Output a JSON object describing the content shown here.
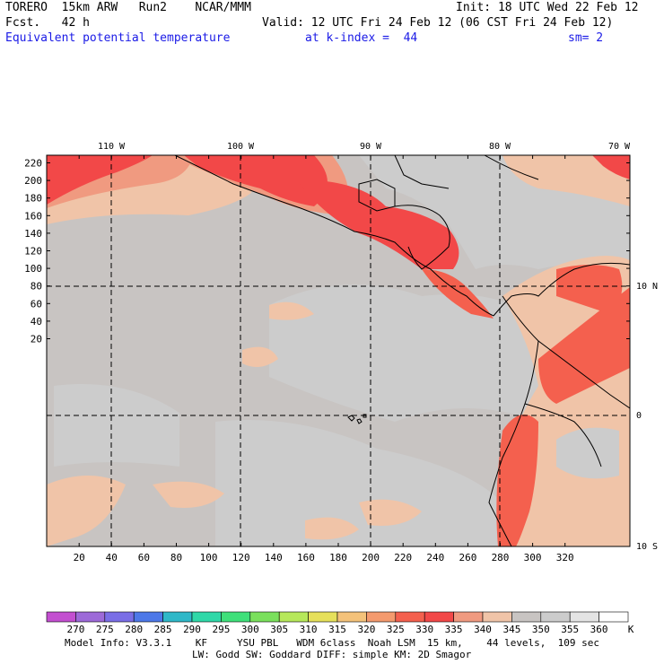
{
  "header": {
    "model": "TORERO  15km ARW   Run2    NCAR/MMM",
    "init": "Init: 18 UTC Wed 22 Feb 12",
    "fcst": "Fcst.   42 h",
    "valid": "Valid: 12 UTC Fri 24 Feb 12 (06 CST Fri 24 Feb 12)",
    "field": "Equivalent potential temperature",
    "level": "at k-index =  44",
    "smooth": "sm= 2"
  },
  "map": {
    "lon_labels": [
      "110 W",
      "100 W",
      "90 W",
      "80 W",
      "70 W"
    ],
    "lat_labels": [
      "10 N",
      "0",
      "10 S"
    ],
    "y_ticks": [
      "220",
      "200",
      "180",
      "160",
      "140",
      "120",
      "100",
      "80",
      "60",
      "40",
      "20"
    ],
    "x_ticks": [
      "20",
      "40",
      "60",
      "80",
      "100",
      "120",
      "140",
      "160",
      "180",
      "200",
      "220",
      "240",
      "260",
      "280",
      "300",
      "320"
    ]
  },
  "legend": {
    "unit": "K",
    "levels": [
      "270",
      "275",
      "280",
      "285",
      "290",
      "295",
      "300",
      "305",
      "310",
      "315",
      "320",
      "325",
      "330",
      "335",
      "340",
      "345",
      "350",
      "355",
      "360"
    ],
    "colors": [
      "#c34fd0",
      "#9d6ad8",
      "#7a6ee6",
      "#4d78e8",
      "#2fb8c8",
      "#2fd8a8",
      "#3fe07a",
      "#7ae05c",
      "#b6e85a",
      "#e6e05a",
      "#f4c27a",
      "#f49a6e",
      "#f4604e",
      "#f24848",
      "#f09a80",
      "#f0c4a8",
      "#c8c4c2",
      "#cccccc",
      "#e4e4e4",
      "#ffffff"
    ]
  },
  "footer": {
    "line1": "Model Info: V3.3.1    KF     YSU PBL   WDM 6class  Noah LSM  15 km,    44 levels,  109 sec",
    "line2": "LW: Godd SW: Goddard DIFF: simple KM: 2D Smagor"
  }
}
